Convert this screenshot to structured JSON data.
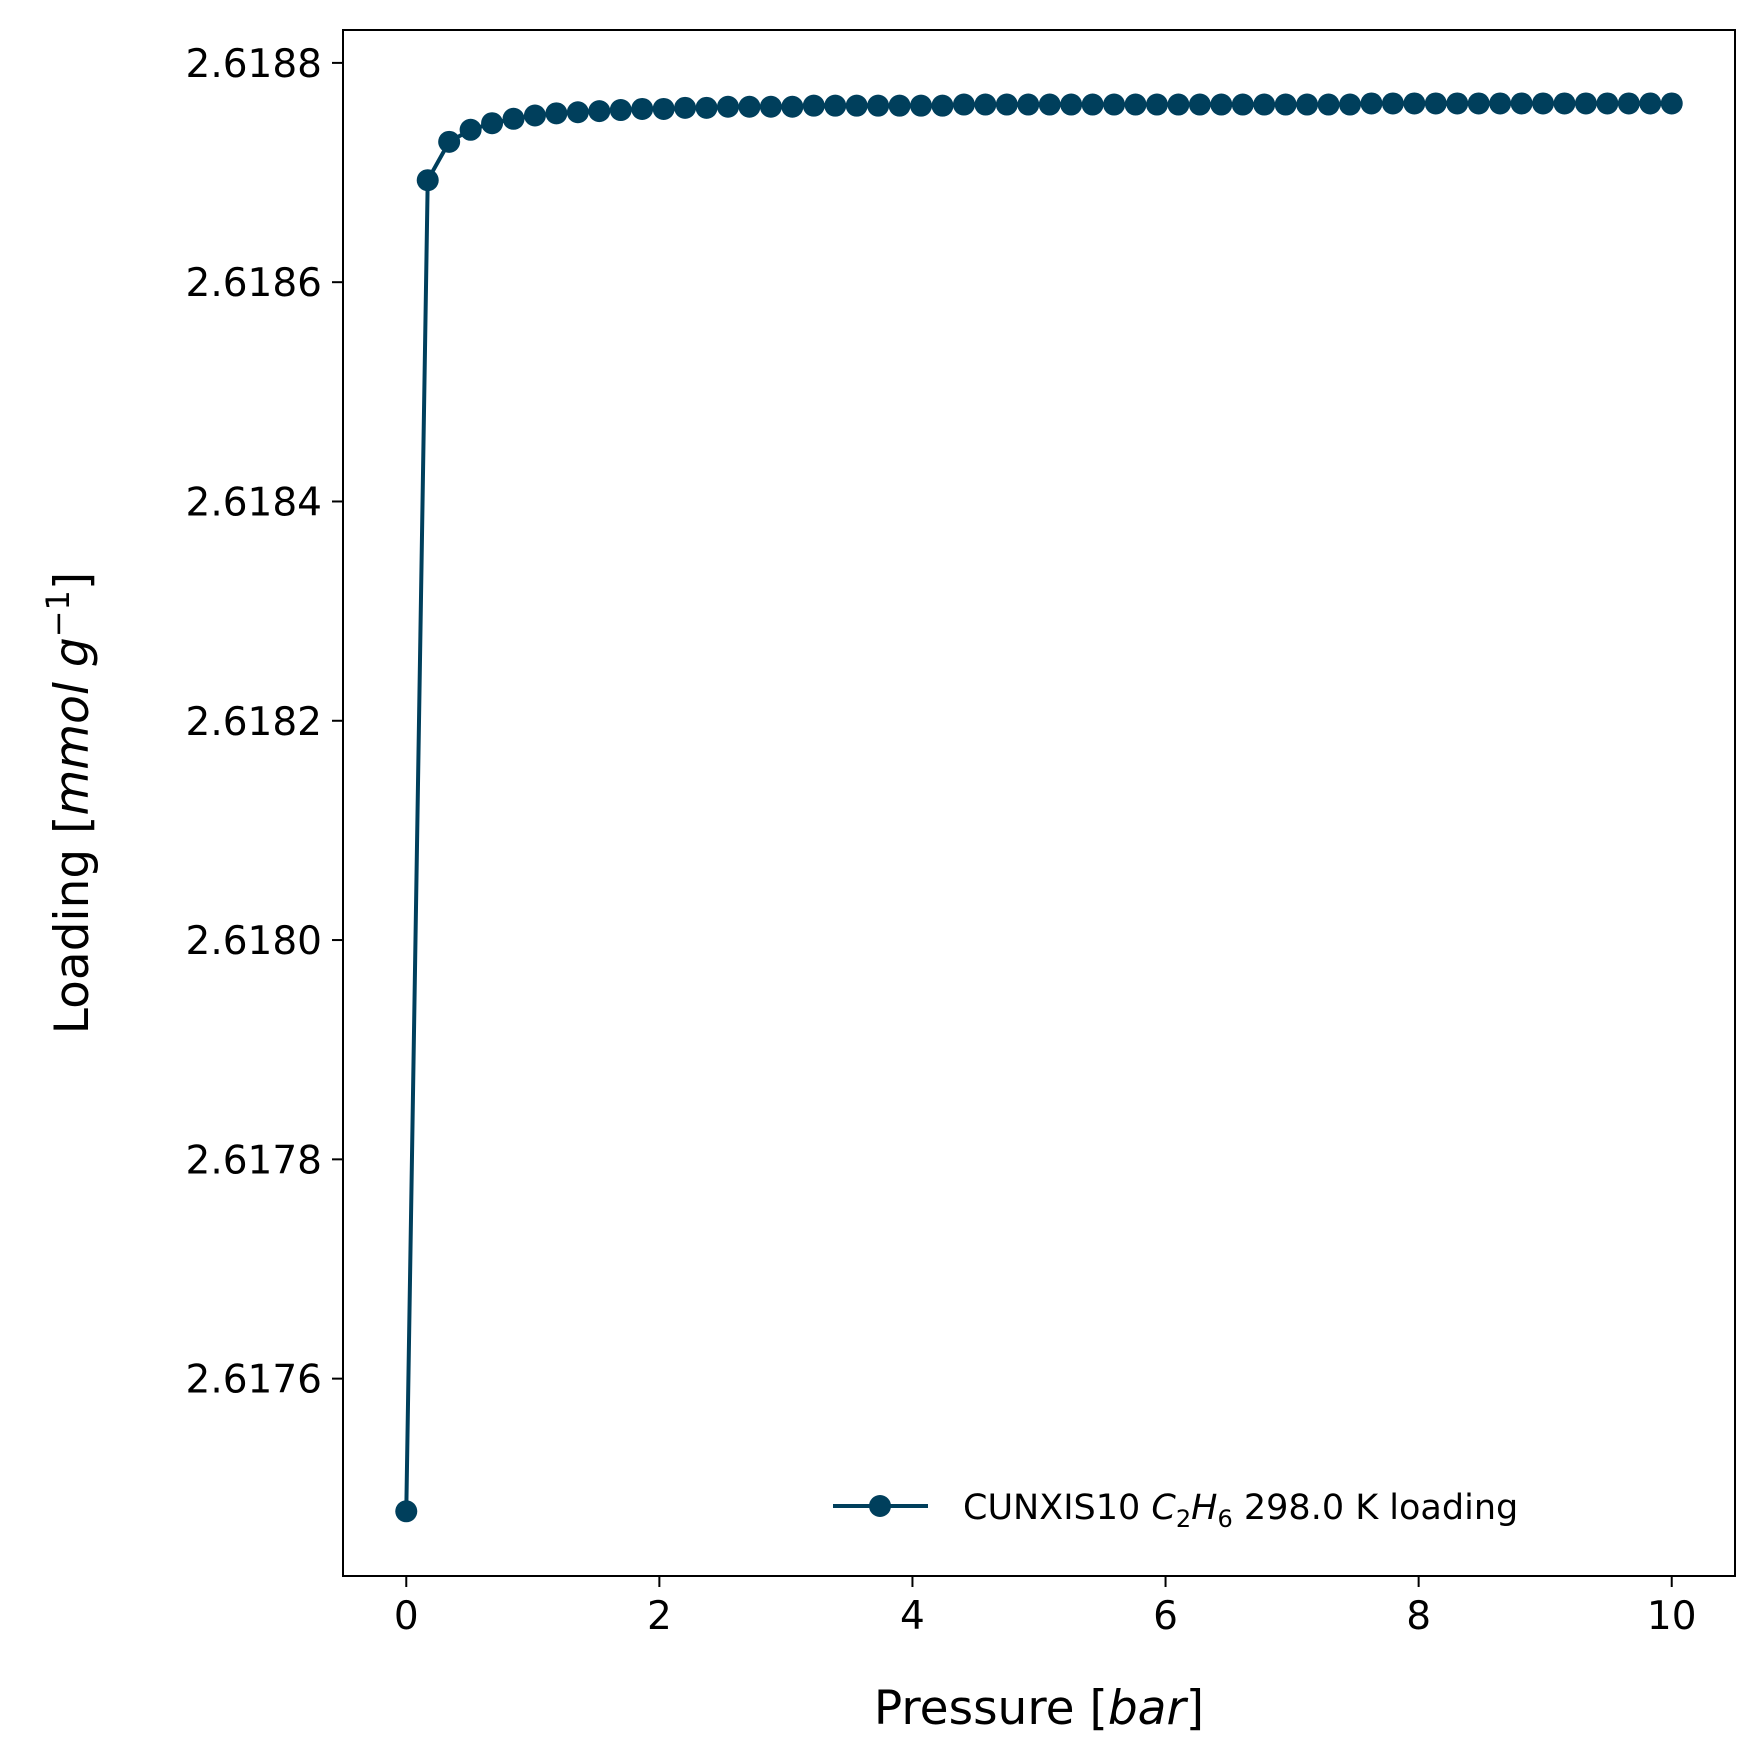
{
  "chart_data": {
    "type": "line",
    "xlabel": {
      "prefix": "Pressure [",
      "italic": "bar",
      "suffix": "]"
    },
    "ylabel": {
      "prefix": "Loading [",
      "italic": "mmol",
      "italic2": "g",
      "superscript": "−1",
      "suffix": "]"
    },
    "xlim": [
      -0.5,
      10.5
    ],
    "ylim": [
      2.61742,
      2.61883
    ],
    "xticks": [
      0,
      2,
      4,
      6,
      8,
      10
    ],
    "xtick_labels": [
      "0",
      "2",
      "4",
      "6",
      "8",
      "10"
    ],
    "yticks": [
      2.6176,
      2.6178,
      2.618,
      2.6182,
      2.6184,
      2.6186,
      2.6188
    ],
    "ytick_labels": [
      "2.6176",
      "2.6178",
      "2.6180",
      "2.6182",
      "2.6184",
      "2.6186",
      "2.6188"
    ],
    "grid": false,
    "legend_position": "lower-right",
    "series": [
      {
        "legend": {
          "prefix": "CUNXIS10 ",
          "formula": [
            {
              "t": "C",
              "i": true
            },
            {
              "t": "2",
              "sub": true
            },
            {
              "t": "H",
              "i": true
            },
            {
              "t": "6",
              "sub": true
            }
          ],
          "suffix": " 298.0 K loading"
        },
        "color": "#003f5c",
        "marker": "circle",
        "x": [
          0.0,
          0.1695,
          0.339,
          0.5085,
          0.678,
          0.8475,
          1.0169,
          1.1864,
          1.3559,
          1.5254,
          1.6949,
          1.8644,
          2.0339,
          2.2034,
          2.3729,
          2.5424,
          2.7119,
          2.8814,
          3.0508,
          3.2203,
          3.3898,
          3.5593,
          3.7288,
          3.8983,
          4.0678,
          4.2373,
          4.4068,
          4.5763,
          4.7458,
          4.9153,
          5.0847,
          5.2542,
          5.4237,
          5.5932,
          5.7627,
          5.9322,
          6.1017,
          6.2712,
          6.4407,
          6.6102,
          6.7797,
          6.9492,
          7.1186,
          7.2881,
          7.4576,
          7.6271,
          7.7966,
          7.9661,
          8.1356,
          8.3051,
          8.4746,
          8.6441,
          8.8136,
          8.9831,
          9.1525,
          9.322,
          9.4915,
          9.661,
          9.8305,
          10.0
        ],
        "y": [
          2.617479,
          2.618693,
          2.618728,
          2.618739,
          2.618745,
          2.618749,
          2.618752,
          2.618754,
          2.618755,
          2.618756,
          2.618757,
          2.618758,
          2.618758,
          2.618759,
          2.618759,
          2.61876,
          2.61876,
          2.61876,
          2.61876,
          2.618761,
          2.618761,
          2.618761,
          2.618761,
          2.618761,
          2.618761,
          2.618761,
          2.618762,
          2.618762,
          2.618762,
          2.618762,
          2.618762,
          2.618762,
          2.618762,
          2.618762,
          2.618762,
          2.618762,
          2.618762,
          2.618762,
          2.618762,
          2.618762,
          2.618762,
          2.618762,
          2.618762,
          2.618762,
          2.618762,
          2.618763,
          2.618763,
          2.618763,
          2.618763,
          2.618763,
          2.618763,
          2.618763,
          2.618763,
          2.618763,
          2.618763,
          2.618763,
          2.618763,
          2.618763,
          2.618763,
          2.618763
        ]
      }
    ]
  }
}
